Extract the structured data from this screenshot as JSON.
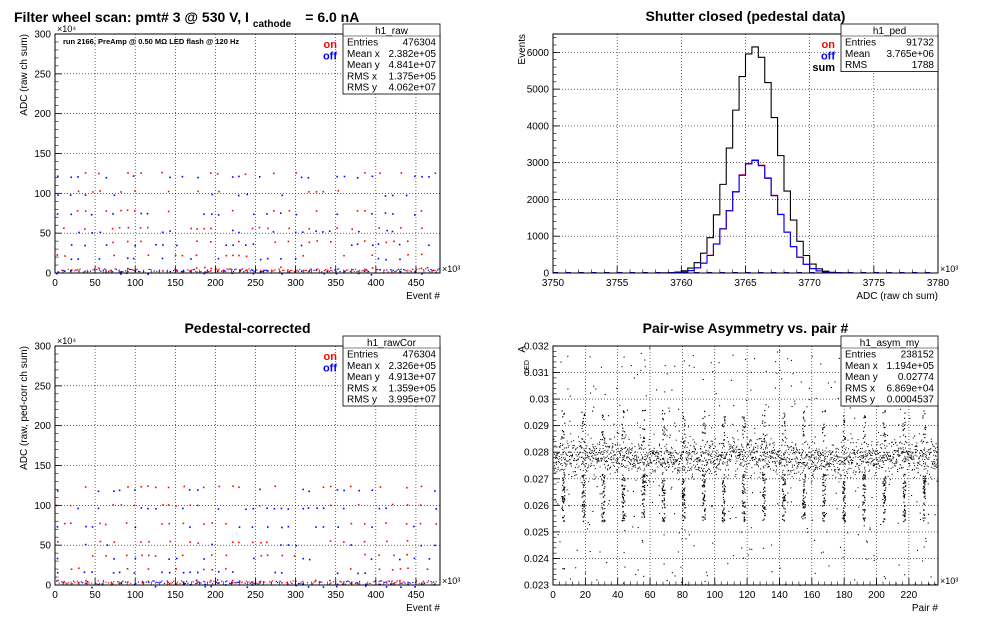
{
  "chart_data": [
    {
      "type": "scatter",
      "title": "Filter wheel scan: pmt#   3 @   530 V, I",
      "title_sub": "cathode",
      "title_tail": "= 6.0 nA",
      "annotation": "run 2166, PreAmp @ 0.50 MΩ  LED flash @  120 Hz",
      "xlabel": "Event #",
      "ylabel": "ADC (raw ch sum)",
      "x_multiplier": "×10³",
      "y_multiplier": "×10⁴",
      "xlim": [
        0,
        480
      ],
      "ylim": [
        0,
        300
      ],
      "x_ticks": [
        0,
        50,
        100,
        150,
        200,
        250,
        300,
        350,
        400,
        450
      ],
      "y_ticks": [
        0,
        50,
        100,
        150,
        200,
        250,
        300
      ],
      "legend": [
        {
          "name": "on",
          "color": "#ff0000"
        },
        {
          "name": "off",
          "color": "#0000ff"
        }
      ],
      "stats_box": {
        "title": "h1_raw",
        "rows": [
          [
            "Entries",
            "476304"
          ],
          [
            "Mean x",
            "2.382e+05"
          ],
          [
            "Mean y",
            "4.841e+07"
          ],
          [
            "RMS x",
            "1.375e+05"
          ],
          [
            "RMS y",
            "4.062e+07"
          ]
        ]
      },
      "levels": [
        124,
        101,
        77,
        55,
        38,
        21,
        5,
        2
      ]
    },
    {
      "type": "line",
      "title": "Shutter closed (pedestal data)",
      "xlabel": "ADC (raw ch sum)",
      "ylabel": "Events",
      "x_multiplier": "×10³",
      "xlim": [
        3750,
        3780
      ],
      "ylim": [
        0,
        6500
      ],
      "x_ticks": [
        3750,
        3755,
        3760,
        3765,
        3770,
        3775,
        3780
      ],
      "y_ticks": [
        0,
        1000,
        2000,
        3000,
        4000,
        5000,
        6000
      ],
      "legend": [
        {
          "name": "on",
          "color": "#ff0000"
        },
        {
          "name": "off",
          "color": "#0000ff"
        },
        {
          "name": "sum",
          "color": "#000000"
        }
      ],
      "stats_box": {
        "title": "h1_ped",
        "rows": [
          [
            "Entries",
            "91732"
          ],
          [
            "Mean",
            "3.765e+06"
          ],
          [
            "RMS",
            "1788"
          ]
        ]
      },
      "series": [
        {
          "name": "sum",
          "color": "#000000",
          "mean": 3765.7,
          "sigma": 1.79,
          "peak": 6150
        },
        {
          "name": "on",
          "color": "#ff0000",
          "mean": 3765.7,
          "sigma": 1.79,
          "peak": 3075
        },
        {
          "name": "off",
          "color": "#0000ff",
          "mean": 3765.7,
          "sigma": 1.79,
          "peak": 3060
        }
      ]
    },
    {
      "type": "scatter",
      "title": "Pedestal-corrected",
      "xlabel": "Event #",
      "ylabel": "ADC (raw, ped-corr ch sum)",
      "x_multiplier": "×10³",
      "y_multiplier": "×10⁴",
      "xlim": [
        0,
        480
      ],
      "ylim": [
        0,
        300
      ],
      "x_ticks": [
        0,
        50,
        100,
        150,
        200,
        250,
        300,
        350,
        400,
        450
      ],
      "y_ticks": [
        0,
        50,
        100,
        150,
        200,
        250,
        300
      ],
      "legend": [
        {
          "name": "on",
          "color": "#ff0000"
        },
        {
          "name": "off",
          "color": "#0000ff"
        }
      ],
      "stats_box": {
        "title": "h1_rawCor",
        "rows": [
          [
            "Entries",
            "476304"
          ],
          [
            "Mean x",
            "2.326e+05"
          ],
          [
            "Mean y",
            "4.913e+07"
          ],
          [
            "RMS x",
            "1.359e+05"
          ],
          [
            "RMS y",
            "3.995e+07"
          ]
        ]
      },
      "levels": [
        122,
        99,
        76,
        53,
        36,
        19,
        4,
        1
      ]
    },
    {
      "type": "scatter",
      "title": "Pair-wise Asymmetry vs. pair #",
      "xlabel": "Pair #",
      "ylabel": "A",
      "ylabel_sub": "LED",
      "x_multiplier": "×10³",
      "xlim": [
        0,
        238
      ],
      "ylim": [
        0.023,
        0.032
      ],
      "x_ticks": [
        0,
        20,
        40,
        60,
        80,
        100,
        120,
        140,
        160,
        180,
        200,
        220
      ],
      "y_ticks": [
        0.023,
        0.024,
        0.025,
        0.026,
        0.027,
        0.028,
        0.029,
        0.03,
        0.031,
        0.032
      ],
      "stats_box": {
        "title": "h1_asym_my",
        "rows": [
          [
            "Entries",
            "238152"
          ],
          [
            "Mean x",
            "1.194e+05"
          ],
          [
            "Mean y",
            "0.02774"
          ],
          [
            "RMS x",
            "6.869e+04"
          ],
          [
            "RMS y",
            "0.0004537"
          ]
        ]
      },
      "band_center": 0.0278,
      "band_halfwidth": 0.0006
    }
  ]
}
